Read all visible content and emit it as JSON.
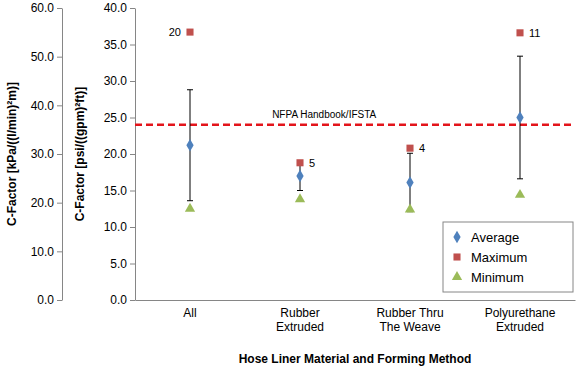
{
  "chart_data": {
    "type": "scatter",
    "x_label": "Hose Liner Material and Forming Method",
    "y_label": "C-Factor [psi/((gpm)²ft)]",
    "y2_label": "C-Factor [kPa/((l/min)²m)]",
    "categories": [
      "All",
      "Rubber Extruded",
      "Rubber Thru The Weave",
      "Polyurethane Extruded"
    ],
    "series": [
      {
        "name": "Average",
        "color": "#4f81bd",
        "marker": "diamond",
        "values": [
          21.2,
          17.0,
          16.1,
          25.0
        ],
        "error": [
          7.6,
          2.0,
          4.0,
          8.4
        ]
      },
      {
        "name": "Maximum",
        "color": "#c0504d",
        "marker": "square",
        "values": [
          36.7,
          18.8,
          20.8,
          36.6
        ]
      },
      {
        "name": "Minimum",
        "color": "#9bbb59",
        "marker": "triangle",
        "values": [
          12.5,
          13.8,
          12.4,
          14.4
        ]
      }
    ],
    "counts": [
      20,
      5,
      4,
      11
    ],
    "reference_line": {
      "value": 24,
      "label": "NFPA Handbook/IFSTA",
      "color": "#e3141b",
      "line_style": "dashed"
    },
    "ylim": [
      0,
      40
    ],
    "yticks": [
      {
        "value": 0,
        "label": "0.0"
      },
      {
        "value": 5,
        "label": "5.0"
      },
      {
        "value": 10,
        "label": "10.0"
      },
      {
        "value": 15,
        "label": "15.0"
      },
      {
        "value": 20,
        "label": "20.0"
      },
      {
        "value": 25,
        "label": "25.0"
      },
      {
        "value": 30,
        "label": "30.0"
      },
      {
        "value": 35,
        "label": "35.0"
      },
      {
        "value": 40,
        "label": "40.0"
      }
    ],
    "y2lim": [
      0,
      60
    ],
    "y2ticks": [
      {
        "value": 0,
        "label": "0.0"
      },
      {
        "value": 10,
        "label": "10.0"
      },
      {
        "value": 20,
        "label": "20.0"
      },
      {
        "value": 30,
        "label": "30.0"
      },
      {
        "value": 40,
        "label": "40.0"
      },
      {
        "value": 50,
        "label": "50.0"
      },
      {
        "value": 60,
        "label": "60.0"
      }
    ],
    "legend": "lower right",
    "grid": false
  }
}
